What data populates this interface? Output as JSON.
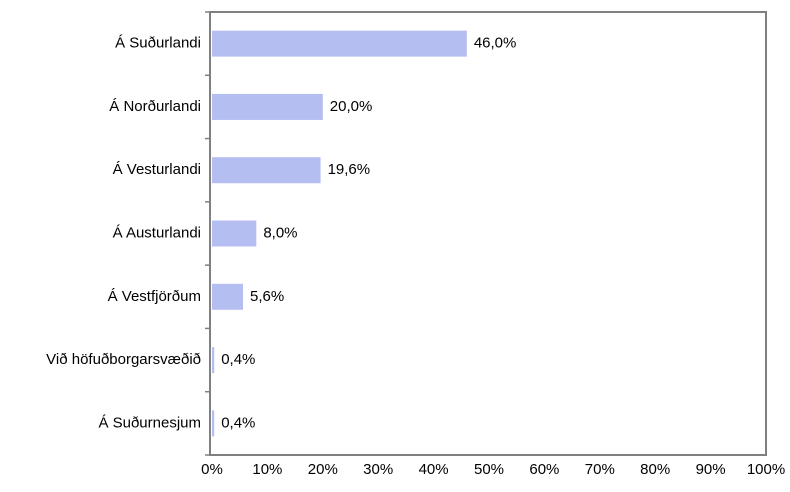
{
  "chart_data": {
    "type": "bar",
    "orientation": "horizontal",
    "categories": [
      "Á Suðurlandi",
      "Á Norðurlandi",
      "Á Vesturlandi",
      "Á Austurlandi",
      "Á Vestfjörðum",
      "Við höfuðborgarsvæðið",
      "Á Suðurnesjum"
    ],
    "values": [
      46.0,
      20.0,
      19.6,
      8.0,
      5.6,
      0.4,
      0.4
    ],
    "value_labels": [
      "46,0%",
      "20,0%",
      "19,6%",
      "8,0%",
      "5,6%",
      "0,4%",
      "0,4%"
    ],
    "color": "#b4bef0",
    "xlim": [
      0,
      100
    ],
    "xticks": [
      {
        "value": 0,
        "label": "0%"
      },
      {
        "value": 10,
        "label": "10%"
      },
      {
        "value": 20,
        "label": "20%"
      },
      {
        "value": 30,
        "label": "30%"
      },
      {
        "value": 40,
        "label": "40%"
      },
      {
        "value": 50,
        "label": "50%"
      },
      {
        "value": 60,
        "label": "60%"
      },
      {
        "value": 70,
        "label": "70%"
      },
      {
        "value": 80,
        "label": "80%"
      },
      {
        "value": 90,
        "label": "90%"
      },
      {
        "value": 100,
        "label": "100%"
      }
    ],
    "grid": false
  }
}
